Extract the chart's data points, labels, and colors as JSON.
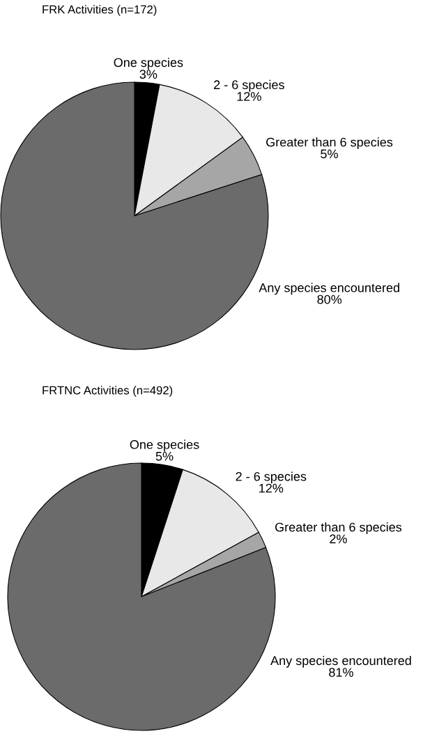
{
  "chart_data": [
    {
      "type": "pie",
      "title": "FRK Activities (n=172)",
      "categories": [
        "One species",
        "2 - 6 species",
        "Greater than 6 species",
        "Any species encountered"
      ],
      "values": [
        3,
        12,
        5,
        80
      ],
      "value_labels": [
        "3%",
        "12%",
        "5%",
        "80%"
      ],
      "colors": [
        "#000000",
        "#e8e8e8",
        "#a6a6a6",
        "#6b6b6b"
      ]
    },
    {
      "type": "pie",
      "title": "FRTNC Activities (n=492)",
      "categories": [
        "One species",
        "2 - 6 species",
        "Greater than 6 species",
        "Any species encountered"
      ],
      "values": [
        5,
        12,
        2,
        81
      ],
      "value_labels": [
        "5%",
        "12%",
        "2%",
        "81%"
      ],
      "colors": [
        "#000000",
        "#e8e8e8",
        "#a6a6a6",
        "#6b6b6b"
      ]
    }
  ]
}
